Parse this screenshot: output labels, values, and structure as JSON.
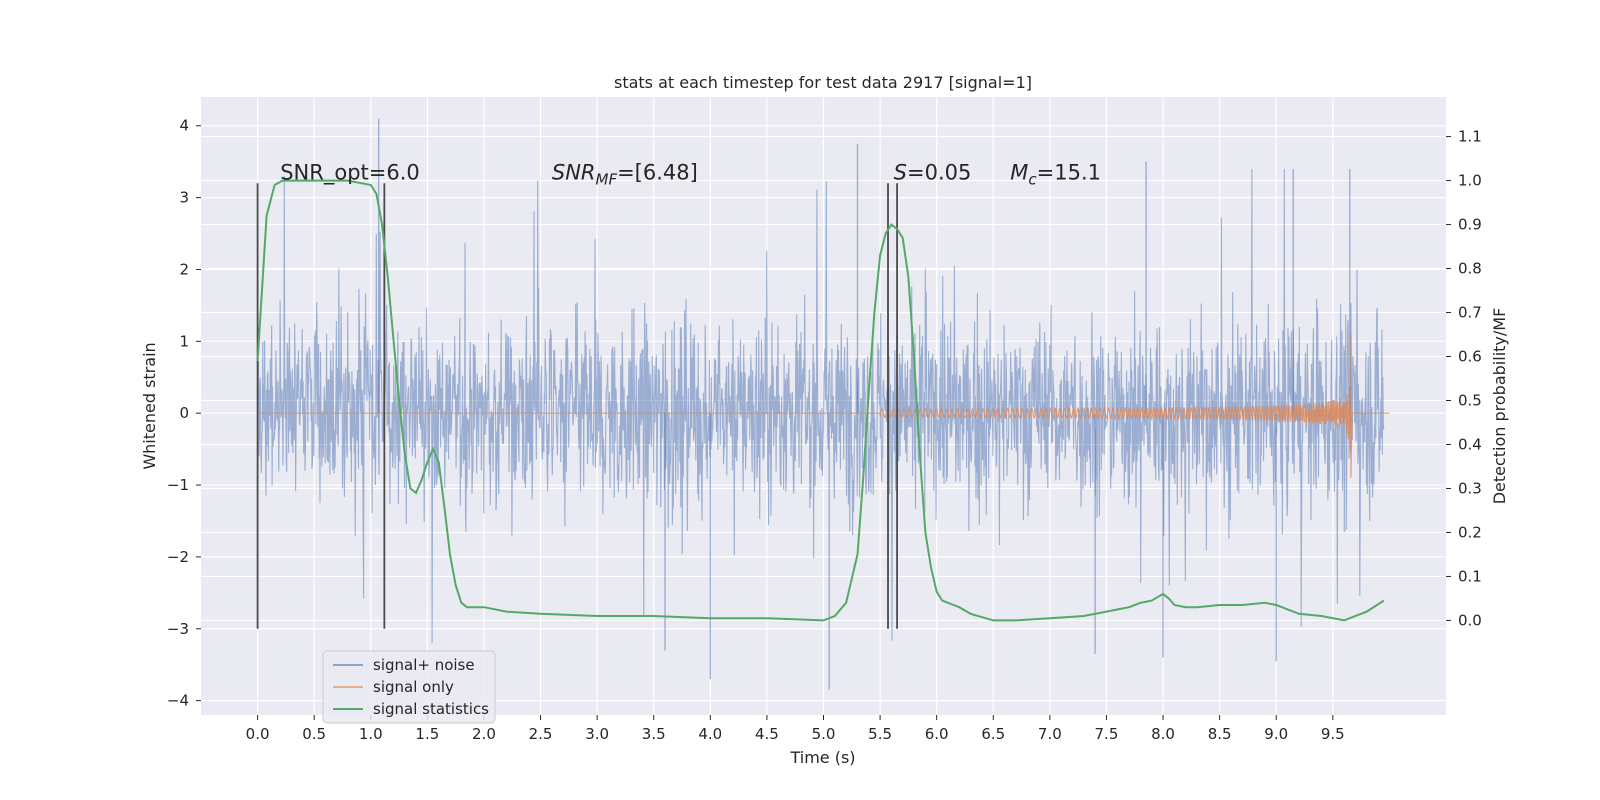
{
  "chart_data": {
    "type": "line",
    "title": "stats at each timestep for test data 2917 [signal=1]",
    "xlabel": "Time (s)",
    "ylabel": "Whitened strain",
    "y2label": "Detection probability/MF",
    "xlim": [
      -0.5,
      10.5
    ],
    "ylim": [
      -4.2,
      4.4
    ],
    "y2lim": [
      -0.215,
      1.19
    ],
    "xticks": [
      "0.0",
      "0.5",
      "1.0",
      "1.5",
      "2.0",
      "2.5",
      "3.0",
      "3.5",
      "4.0",
      "4.5",
      "5.0",
      "5.5",
      "6.0",
      "6.5",
      "7.0",
      "7.5",
      "8.0",
      "8.5",
      "9.0",
      "9.5"
    ],
    "xtick_values": [
      0,
      0.5,
      1,
      1.5,
      2,
      2.5,
      3,
      3.5,
      4,
      4.5,
      5,
      5.5,
      6,
      6.5,
      7,
      7.5,
      8,
      8.5,
      9,
      9.5
    ],
    "yticks": [
      4,
      3,
      2,
      1,
      0,
      -1,
      -2,
      -3,
      -4
    ],
    "ytick_labels": [
      "4",
      "3",
      "2",
      "1",
      "0",
      "−1",
      "−2",
      "−3",
      "−4"
    ],
    "y2ticks": [
      1.1,
      1.0,
      0.9,
      0.8,
      0.7,
      0.6,
      0.5,
      0.4,
      0.3,
      0.2,
      0.1,
      0.0
    ],
    "y2tick_labels": [
      "1.1",
      "1.0",
      "0.9",
      "0.8",
      "0.7",
      "0.6",
      "0.5",
      "0.4",
      "0.3",
      "0.2",
      "0.1",
      "0.0"
    ],
    "grid": true,
    "legend_position": "lower-left",
    "series": [
      {
        "name": "signal+ noise",
        "color": "#4c72b0",
        "style": "dense noise trace, amplitude ~1.3 core, peaks to ~4.1 and ~-3.9",
        "x_range": [
          0,
          9.95
        ],
        "spikes": [
          {
            "x": 1.07,
            "y": 4.1
          },
          {
            "x": 5.3,
            "y": 3.75
          },
          {
            "x": 9.15,
            "y": 3.4
          },
          {
            "x": 7.85,
            "y": 3.5
          },
          {
            "x": 9.65,
            "y": 3.4
          },
          {
            "x": 5.05,
            "y": -3.85
          },
          {
            "x": 4.0,
            "y": -3.7
          },
          {
            "x": 7.4,
            "y": -3.35
          },
          {
            "x": 8.0,
            "y": -3.4
          },
          {
            "x": 9.0,
            "y": -3.45
          },
          {
            "x": 3.6,
            "y": -3.3
          }
        ]
      },
      {
        "name": "signal only",
        "color": "#dd8452",
        "style": "chirp growing from ~5.5 s to merger at ~9.66 s",
        "chirp_start": 5.5,
        "merger_time": 9.66,
        "peak_amplitude": 1.1
      },
      {
        "name": "signal statistics",
        "color": "#55a868",
        "axis": "right",
        "x": [
          0.0,
          0.08,
          0.15,
          0.22,
          0.35,
          0.5,
          0.6,
          0.7,
          0.8,
          0.9,
          1.0,
          1.05,
          1.1,
          1.15,
          1.2,
          1.25,
          1.3,
          1.35,
          1.4,
          1.45,
          1.5,
          1.55,
          1.6,
          1.65,
          1.7,
          1.75,
          1.8,
          1.85,
          1.9,
          2.0,
          2.2,
          2.5,
          3.0,
          3.5,
          4.0,
          4.5,
          5.0,
          5.1,
          5.2,
          5.3,
          5.35,
          5.4,
          5.45,
          5.5,
          5.55,
          5.6,
          5.65,
          5.7,
          5.75,
          5.8,
          5.85,
          5.9,
          5.95,
          6.0,
          6.05,
          6.1,
          6.15,
          6.2,
          6.3,
          6.5,
          6.7,
          7.0,
          7.3,
          7.5,
          7.6,
          7.7,
          7.8,
          7.9,
          8.0,
          8.05,
          8.1,
          8.2,
          8.3,
          8.5,
          8.7,
          8.9,
          9.0,
          9.2,
          9.4,
          9.6,
          9.8,
          9.95
        ],
        "values": [
          0.59,
          0.92,
          0.99,
          1.0,
          1.0,
          1.0,
          1.0,
          1.0,
          1.0,
          0.995,
          0.99,
          0.97,
          0.9,
          0.78,
          0.64,
          0.5,
          0.38,
          0.3,
          0.29,
          0.32,
          0.36,
          0.39,
          0.36,
          0.26,
          0.15,
          0.08,
          0.04,
          0.03,
          0.03,
          0.03,
          0.02,
          0.015,
          0.01,
          0.01,
          0.005,
          0.005,
          0.0,
          0.01,
          0.04,
          0.15,
          0.32,
          0.52,
          0.7,
          0.83,
          0.88,
          0.9,
          0.89,
          0.87,
          0.78,
          0.6,
          0.38,
          0.2,
          0.12,
          0.065,
          0.045,
          0.04,
          0.035,
          0.03,
          0.015,
          0.0,
          0.0,
          0.005,
          0.01,
          0.02,
          0.025,
          0.03,
          0.04,
          0.045,
          0.06,
          0.05,
          0.035,
          0.03,
          0.03,
          0.035,
          0.035,
          0.04,
          0.035,
          0.015,
          0.01,
          0.0,
          0.02,
          0.045
        ]
      }
    ],
    "vlines": [
      {
        "x": 0.0,
        "y": [
          -3.0,
          3.2
        ]
      },
      {
        "x": 1.12,
        "y": [
          -3.0,
          3.2
        ]
      },
      {
        "x": 5.57,
        "y": [
          -3.0,
          3.2
        ]
      },
      {
        "x": 5.65,
        "y": [
          -3.0,
          3.2
        ]
      }
    ],
    "annotations": [
      {
        "text": "SNR_opt=6.0",
        "x": 0.2,
        "y": 3.25
      },
      {
        "text": "SNR",
        "sub": "MF",
        "tail": "=[6.48]",
        "x": 2.6,
        "y": 3.25,
        "italic_head": true
      },
      {
        "text": "S",
        "tail": "=0.05",
        "x": 5.62,
        "y": 3.25,
        "italic_head": true
      },
      {
        "text": "M",
        "sub": "c",
        "tail": "=15.1",
        "x": 6.65,
        "y": 3.25,
        "italic_head": true
      }
    ]
  }
}
